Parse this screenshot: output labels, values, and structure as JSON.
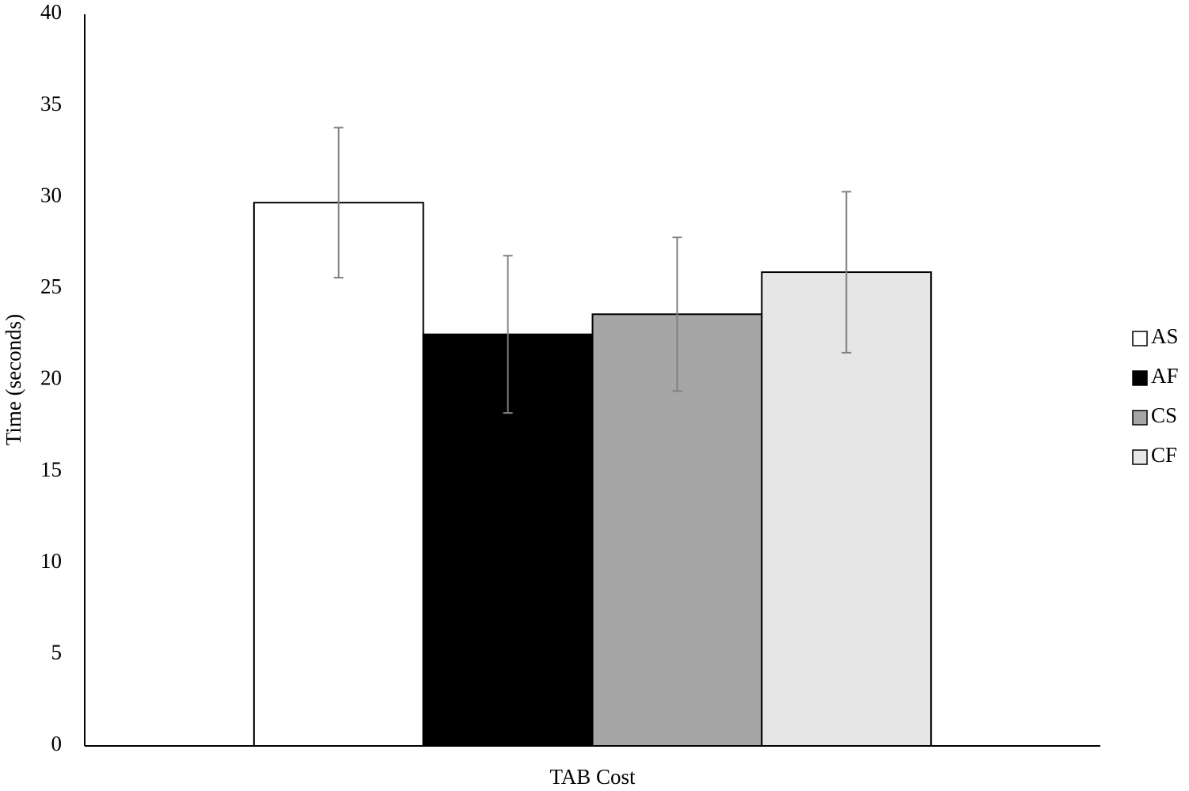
{
  "chart_data": {
    "type": "bar",
    "y_label": "Time (seconds)",
    "categories": [
      "TAB Cost"
    ],
    "series": [
      {
        "name": "AS",
        "color": "#ffffff",
        "values": [
          29.7
        ],
        "errors": [
          4.1
        ]
      },
      {
        "name": "AF",
        "color": "#000000",
        "values": [
          22.5
        ],
        "errors": [
          4.3
        ]
      },
      {
        "name": "CS",
        "color": "#a6a6a6",
        "values": [
          23.6
        ],
        "errors": [
          4.2
        ]
      },
      {
        "name": "CF",
        "color": "#e6e6e6",
        "values": [
          25.9
        ],
        "errors": [
          4.4
        ]
      }
    ],
    "ylim": [
      0,
      40
    ],
    "yticks": [
      0,
      5,
      10,
      15,
      20,
      25,
      30,
      35,
      40
    ],
    "grid": false,
    "legend": "right"
  }
}
